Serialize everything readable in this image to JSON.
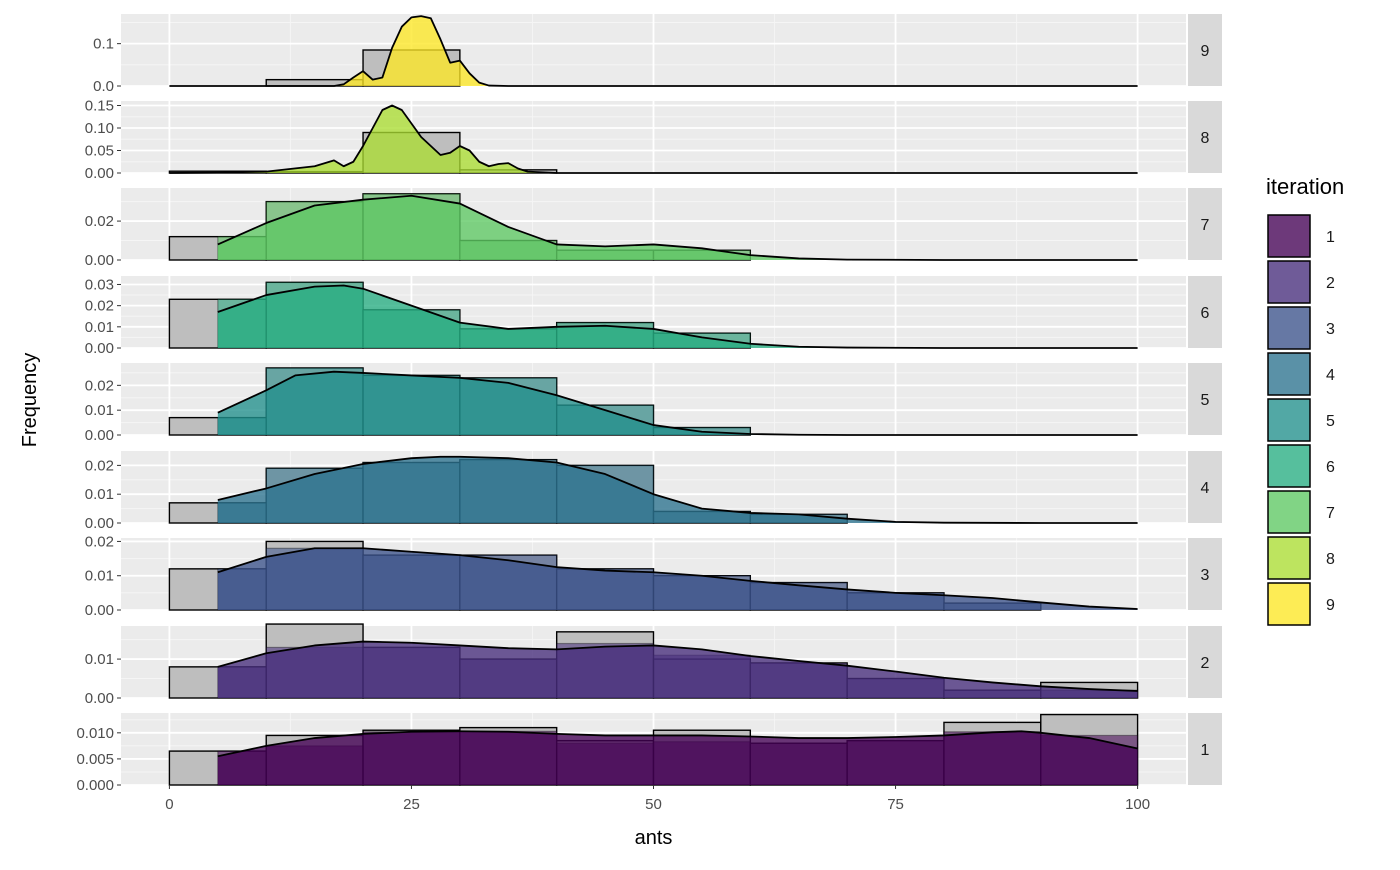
{
  "chart_data": {
    "type": "histogram-density-facets",
    "xlabel": "ants",
    "ylabel": "Frequency",
    "x_ticks": [
      0,
      25,
      50,
      75,
      100
    ],
    "xlim": [
      -5,
      105
    ],
    "legend": {
      "title": "iteration",
      "position": "right",
      "items": [
        {
          "label": "1",
          "color": "#440154"
        },
        {
          "label": "2",
          "color": "#472D7B"
        },
        {
          "label": "3",
          "color": "#3B528B"
        },
        {
          "label": "4",
          "color": "#2C728E"
        },
        {
          "label": "5",
          "color": "#21908C"
        },
        {
          "label": "6",
          "color": "#27AD81"
        },
        {
          "label": "7",
          "color": "#5DC863"
        },
        {
          "label": "8",
          "color": "#AADC32"
        },
        {
          "label": "9",
          "color": "#FDE725"
        }
      ]
    },
    "grey_bin_edges": [
      0,
      10,
      20,
      30,
      40,
      50,
      60,
      70,
      80,
      90,
      100
    ],
    "colored_bin_edges": [
      5,
      10,
      20,
      30,
      40,
      50,
      60,
      70,
      80,
      90,
      100
    ],
    "panels": [
      {
        "strip": "9",
        "color": "#FDE725",
        "ylim": [
          0,
          0.17
        ],
        "y_ticks": [
          0.0,
          0.1
        ],
        "y_tick_labels": [
          "0.0",
          "0.1"
        ],
        "grey_bins": [
          0,
          0.015,
          0.085,
          0,
          0,
          0,
          0,
          0,
          0,
          0
        ],
        "colored_bins": [
          0,
          0,
          0,
          0,
          0,
          0,
          0,
          0,
          0,
          0
        ],
        "density": {
          "x": [
            0,
            10,
            17,
            18,
            19,
            20,
            21,
            22,
            23,
            24,
            25,
            26,
            27,
            28,
            29,
            30,
            31,
            32,
            33,
            35,
            40,
            60,
            80,
            100
          ],
          "y": [
            0,
            0,
            0,
            0.004,
            0.02,
            0.035,
            0.015,
            0.02,
            0.09,
            0.14,
            0.162,
            0.165,
            0.16,
            0.11,
            0.055,
            0.06,
            0.03,
            0.008,
            0.001,
            0,
            0,
            0,
            0,
            0
          ]
        }
      },
      {
        "strip": "8",
        "color": "#AADC32",
        "ylim": [
          0,
          0.16
        ],
        "y_ticks": [
          0.0,
          0.05,
          0.1,
          0.15
        ],
        "y_tick_labels": [
          "0.00",
          "0.05",
          "0.10",
          "0.15"
        ],
        "grey_bins": [
          0.004,
          0.003,
          0.09,
          0.007,
          0,
          0,
          0,
          0,
          0,
          0
        ],
        "colored_bins": [
          0,
          0,
          0,
          0,
          0,
          0,
          0,
          0,
          0,
          0
        ],
        "density": {
          "x": [
            0,
            5,
            10,
            15,
            17,
            18,
            19,
            20,
            21,
            22,
            23,
            24,
            25,
            26,
            27,
            28,
            29,
            30,
            31,
            32,
            33,
            34,
            35,
            36,
            37,
            40,
            60,
            80,
            100
          ],
          "y": [
            0,
            0.001,
            0.003,
            0.015,
            0.028,
            0.015,
            0.025,
            0.06,
            0.1,
            0.14,
            0.15,
            0.14,
            0.11,
            0.08,
            0.06,
            0.04,
            0.045,
            0.06,
            0.05,
            0.025,
            0.015,
            0.02,
            0.022,
            0.01,
            0.003,
            0,
            0,
            0,
            0
          ]
        }
      },
      {
        "strip": "7",
        "color": "#5DC863",
        "ylim": [
          0,
          0.037
        ],
        "y_ticks": [
          0.0,
          0.02
        ],
        "y_tick_labels": [
          "0.00",
          "0.02"
        ],
        "grey_bins": [
          0.012,
          0.03,
          0.034,
          0.01,
          0.005,
          0.005,
          0,
          0,
          0,
          0
        ],
        "colored_bins": [
          0.012,
          0.03,
          0.034,
          0.01,
          0.005,
          0.005,
          0,
          0,
          0,
          0
        ],
        "density": {
          "x": [
            5,
            10,
            15,
            20,
            25,
            30,
            35,
            40,
            45,
            50,
            55,
            60,
            65,
            70,
            80,
            90,
            100
          ],
          "y": [
            0.008,
            0.019,
            0.028,
            0.031,
            0.033,
            0.029,
            0.017,
            0.008,
            0.007,
            0.008,
            0.006,
            0.0025,
            0.0008,
            0.0002,
            0,
            0,
            0
          ]
        }
      },
      {
        "strip": "6",
        "color": "#27AD81",
        "ylim": [
          0,
          0.034
        ],
        "y_ticks": [
          0.0,
          0.01,
          0.02,
          0.03
        ],
        "y_tick_labels": [
          "0.00",
          "0.01",
          "0.02",
          "0.03"
        ],
        "grey_bins": [
          0.023,
          0.031,
          0.018,
          0.009,
          0.012,
          0.007,
          0,
          0,
          0,
          0
        ],
        "colored_bins": [
          0.023,
          0.031,
          0.018,
          0.009,
          0.012,
          0.007,
          0,
          0,
          0,
          0
        ],
        "density": {
          "x": [
            5,
            10,
            15,
            18,
            20,
            25,
            30,
            35,
            40,
            45,
            50,
            55,
            60,
            65,
            70,
            80,
            90,
            100
          ],
          "y": [
            0.017,
            0.025,
            0.029,
            0.0295,
            0.028,
            0.02,
            0.012,
            0.009,
            0.01,
            0.0105,
            0.009,
            0.005,
            0.002,
            0.0006,
            0.0002,
            0,
            0,
            0
          ]
        }
      },
      {
        "strip": "5",
        "color": "#21908C",
        "ylim": [
          0,
          0.029
        ],
        "y_ticks": [
          0.0,
          0.01,
          0.02
        ],
        "y_tick_labels": [
          "0.00",
          "0.01",
          "0.02"
        ],
        "grey_bins": [
          0.007,
          0.027,
          0.024,
          0.023,
          0.012,
          0.003,
          0,
          0,
          0,
          0
        ],
        "colored_bins": [
          0.007,
          0.027,
          0.024,
          0.023,
          0.012,
          0.003,
          0,
          0,
          0,
          0
        ],
        "density": {
          "x": [
            5,
            10,
            13,
            17,
            20,
            25,
            30,
            35,
            40,
            45,
            50,
            55,
            60,
            65,
            70,
            80,
            90,
            100
          ],
          "y": [
            0.009,
            0.018,
            0.024,
            0.0255,
            0.025,
            0.024,
            0.023,
            0.021,
            0.016,
            0.01,
            0.004,
            0.0013,
            0.0004,
            0.0001,
            0,
            0,
            0,
            0
          ]
        }
      },
      {
        "strip": "4",
        "color": "#2C728E",
        "ylim": [
          0,
          0.025
        ],
        "y_ticks": [
          0.0,
          0.01,
          0.02
        ],
        "y_tick_labels": [
          "0.00",
          "0.01",
          "0.02"
        ],
        "grey_bins": [
          0.007,
          0.019,
          0.021,
          0.022,
          0.02,
          0.004,
          0.003,
          0,
          0,
          0
        ],
        "colored_bins": [
          0.007,
          0.019,
          0.021,
          0.022,
          0.02,
          0.004,
          0.003,
          0,
          0,
          0
        ],
        "density": {
          "x": [
            5,
            10,
            15,
            20,
            25,
            28,
            30,
            35,
            40,
            45,
            50,
            55,
            60,
            65,
            70,
            75,
            80,
            90,
            100
          ],
          "y": [
            0.008,
            0.012,
            0.017,
            0.0205,
            0.0225,
            0.023,
            0.023,
            0.0225,
            0.021,
            0.017,
            0.01,
            0.005,
            0.0035,
            0.003,
            0.0015,
            0.0004,
            0.0001,
            0,
            0
          ]
        }
      },
      {
        "strip": "3",
        "color": "#3B528B",
        "ylim": [
          0,
          0.021
        ],
        "y_ticks": [
          0.0,
          0.01,
          0.02
        ],
        "y_tick_labels": [
          "0.00",
          "0.01",
          "0.02"
        ],
        "grey_bins": [
          0.012,
          0.02,
          0.016,
          0.016,
          0.012,
          0.01,
          0.008,
          0.005,
          0.002,
          0
        ],
        "colored_bins": [
          0.012,
          0.018,
          0.016,
          0.016,
          0.012,
          0.01,
          0.008,
          0.005,
          0.002,
          0
        ],
        "density": {
          "x": [
            5,
            10,
            15,
            20,
            25,
            30,
            35,
            40,
            45,
            50,
            55,
            60,
            65,
            70,
            75,
            80,
            85,
            90,
            95,
            100
          ],
          "y": [
            0.011,
            0.0155,
            0.018,
            0.018,
            0.017,
            0.016,
            0.0145,
            0.0125,
            0.0115,
            0.011,
            0.01,
            0.0085,
            0.0072,
            0.006,
            0.005,
            0.0043,
            0.0035,
            0.0022,
            0.001,
            0.0003
          ]
        }
      },
      {
        "strip": "2",
        "color": "#472D7B",
        "ylim": [
          0,
          0.0185
        ],
        "y_ticks": [
          0.0,
          0.01
        ],
        "y_tick_labels": [
          "0.00",
          "0.01"
        ],
        "grey_bins": [
          0.008,
          0.019,
          0.013,
          0.01,
          0.017,
          0.01,
          0.009,
          0.005,
          0.002,
          0.004
        ],
        "colored_bins": [
          0.008,
          0.013,
          0.013,
          0.01,
          0.014,
          0.011,
          0.009,
          0.005,
          0.002,
          0.002
        ],
        "density": {
          "x": [
            5,
            10,
            15,
            20,
            25,
            30,
            35,
            40,
            45,
            50,
            55,
            60,
            65,
            70,
            75,
            80,
            85,
            90,
            95,
            100
          ],
          "y": [
            0.008,
            0.0115,
            0.0135,
            0.0145,
            0.0142,
            0.0135,
            0.0128,
            0.0125,
            0.0132,
            0.0135,
            0.0125,
            0.0108,
            0.0095,
            0.0083,
            0.0068,
            0.0052,
            0.004,
            0.003,
            0.0023,
            0.0018
          ]
        }
      },
      {
        "strip": "1",
        "color": "#440154",
        "ylim": [
          0,
          0.0138
        ],
        "y_ticks": [
          0.0,
          0.005,
          0.01
        ],
        "y_tick_labels": [
          "0.000",
          "0.005",
          "0.010"
        ],
        "grey_bins": [
          0.0065,
          0.0095,
          0.0105,
          0.011,
          0.0085,
          0.0105,
          0.008,
          0.0085,
          0.012,
          0.0135
        ],
        "colored_bins": [
          0.0065,
          0.0075,
          0.0102,
          0.0103,
          0.008,
          0.0083,
          0.008,
          0.0085,
          0.0102,
          0.0095
        ],
        "density": {
          "x": [
            5,
            10,
            15,
            20,
            25,
            30,
            35,
            40,
            45,
            50,
            55,
            60,
            65,
            70,
            75,
            80,
            85,
            88,
            90,
            95,
            100
          ],
          "y": [
            0.0055,
            0.0075,
            0.009,
            0.0098,
            0.0102,
            0.0103,
            0.0102,
            0.0098,
            0.0095,
            0.0095,
            0.0095,
            0.0093,
            0.009,
            0.009,
            0.0092,
            0.0095,
            0.0101,
            0.0103,
            0.01,
            0.009,
            0.007
          ]
        }
      }
    ]
  }
}
